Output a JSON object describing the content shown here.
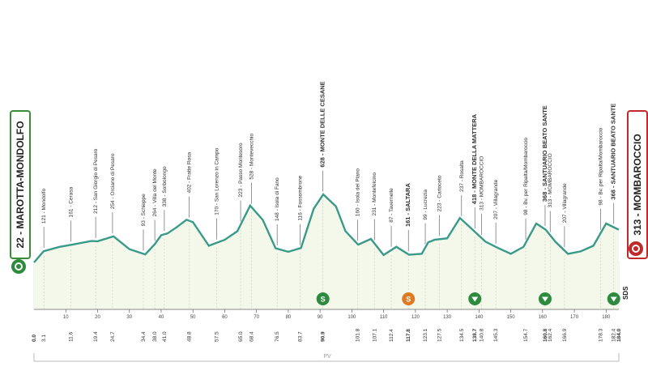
{
  "start": {
    "label": "22 - MAROTTA-MONDOLFO"
  },
  "finish": {
    "label": "313 - MOMBAROCCIO"
  },
  "sds_label": "SDS",
  "footer_label": "PV",
  "axis_ticks": [
    10,
    20,
    30,
    40,
    50,
    60,
    70,
    80,
    90,
    100,
    110,
    120,
    130,
    140,
    150,
    160,
    170,
    180
  ],
  "colors": {
    "profile_fill": "#f4f8ea",
    "profile_line": "#3a9a8a",
    "sprint_green": "#2d8a3e",
    "sprint_orange": "#e07a20"
  },
  "chart_data": {
    "type": "area",
    "xlim": [
      0,
      184
    ],
    "ylim": [
      0,
      700
    ],
    "profile": {
      "x": [
        0,
        3,
        8,
        12,
        18,
        20,
        25,
        30,
        35,
        38,
        40,
        42,
        45,
        48,
        50,
        55,
        60,
        64,
        68,
        72,
        76,
        80,
        84,
        88,
        91,
        95,
        98,
        102,
        106,
        110,
        114,
        118,
        122,
        124,
        126,
        130,
        134,
        138,
        142,
        146,
        150,
        154,
        158,
        161,
        164,
        168,
        172,
        176,
        180,
        184
      ],
      "y": [
        22,
        121,
        160,
        180,
        212,
        210,
        254,
        140,
        93,
        184,
        264,
        280,
        338,
        402,
        380,
        170,
        223,
        300,
        528,
        400,
        148,
        116,
        150,
        500,
        628,
        520,
        300,
        180,
        231,
        87,
        161,
        90,
        99,
        200,
        223,
        237,
        418,
        313,
        207,
        150,
        98,
        160,
        368,
        313,
        207,
        98,
        120,
        170,
        368,
        313
      ]
    },
    "places": [
      {
        "km": 3.1,
        "alt": 121,
        "name": "Mondolfo"
      },
      {
        "km": 11.6,
        "alt": 161,
        "name": "Cerasa"
      },
      {
        "km": 19.4,
        "alt": 212,
        "name": "San Giorgio di Pesaro"
      },
      {
        "km": 24.7,
        "alt": 254,
        "name": "Orciano di Pesaro"
      },
      {
        "km": 34.4,
        "alt": 93,
        "name": "Schieppe"
      },
      {
        "km": 38.0,
        "alt": 264,
        "name": "Villa del Monte"
      },
      {
        "km": 41.0,
        "alt": 338,
        "name": "Sorbolongo"
      },
      {
        "km": 48.8,
        "alt": 402,
        "name": "Fratte Rosa"
      },
      {
        "km": 57.5,
        "alt": 170,
        "name": "San Lorenzo in Campo"
      },
      {
        "km": 65.0,
        "alt": 223,
        "name": "Passo Montesoro"
      },
      {
        "km": 68.4,
        "alt": 528,
        "name": "Montevecchio"
      },
      {
        "km": 76.5,
        "alt": 148,
        "name": "Isola di Fano"
      },
      {
        "km": 83.7,
        "alt": 116,
        "name": "Fossombrone"
      },
      {
        "km": 90.9,
        "alt": 628,
        "name": "MONTE DELLE CESANE",
        "bold": true
      },
      {
        "km": 101.8,
        "alt": 160,
        "name": "Isola del Piano"
      },
      {
        "km": 107.1,
        "alt": 231,
        "name": "Montefelcino"
      },
      {
        "km": 112.4,
        "alt": 87,
        "name": "Tavernelle"
      },
      {
        "km": 117.8,
        "alt": 161,
        "name": "SALTARA",
        "bold": true
      },
      {
        "km": 123.1,
        "alt": 99,
        "name": "Lucrezia"
      },
      {
        "km": 127.5,
        "alt": 223,
        "name": "Cartoceto"
      },
      {
        "km": 134.5,
        "alt": 237,
        "name": "Rosalta"
      },
      {
        "km": 138.7,
        "alt": 418,
        "name": "MONTE DELLA MATTERA",
        "bold": true
      },
      {
        "km": 140.8,
        "alt": 313,
        "name": "MOMBAROCCIO"
      },
      {
        "km": 145.3,
        "alt": 207,
        "name": "Villagrande"
      },
      {
        "km": 154.7,
        "alt": 98,
        "name": "Bv. per Ripalta/Mombaroccio"
      },
      {
        "km": 160.8,
        "alt": 368,
        "name": "SANTUARIO BEATO SANTE",
        "bold": true
      },
      {
        "km": 162.4,
        "alt": 313,
        "name": "MOMBAROCCIO"
      },
      {
        "km": 166.9,
        "alt": 207,
        "name": "Villagrande"
      },
      {
        "km": 178.3,
        "alt": 98,
        "name": "Bv. per Ripalta/Mombaroccio"
      },
      {
        "km": 182.4,
        "alt": 368,
        "name": "SANTUARIO BEATO SANTE",
        "bold": true
      }
    ],
    "distance_labels": [
      "0.0",
      "3.1",
      "11.6",
      "19.4",
      "24.7",
      "34.4",
      "38.0",
      "41.0",
      "48.8",
      "57.5",
      "65.0",
      "68.4",
      "76.5",
      "83.7",
      "90.9",
      "101.8",
      "107.1",
      "112.4",
      "117.8",
      "123.1",
      "127.5",
      "134.5",
      "138.7",
      "140.8",
      "145.3",
      "154.7",
      "160.8",
      "162.4",
      "166.9",
      "178.3",
      "182.4",
      "184.0"
    ],
    "sprints": [
      {
        "km": 90.9,
        "type": "climb",
        "label": "S"
      },
      {
        "km": 117.8,
        "type": "intermediate",
        "label": "S"
      },
      {
        "km": 138.7,
        "type": "climb",
        "label": ""
      },
      {
        "km": 160.8,
        "type": "climb",
        "label": ""
      },
      {
        "km": 182.4,
        "type": "climb",
        "label": ""
      }
    ]
  }
}
